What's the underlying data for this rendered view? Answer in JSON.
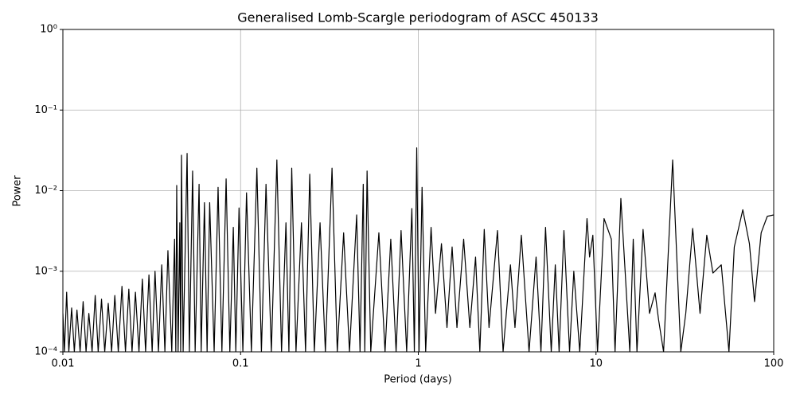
{
  "chart_data": {
    "type": "line",
    "title": "Generalised Lomb-Scargle periodogram of ASCC 450133",
    "x_label": "Period (days)",
    "y_label": "Power",
    "x_scale": "log",
    "y_scale": "log",
    "grid": true,
    "xlim": [
      0.01,
      100
    ],
    "ylim": [
      0.0001,
      1
    ],
    "xticks": [
      0.01,
      0.1,
      1,
      10,
      100
    ],
    "yticks": [
      {
        "value": 0.0001,
        "label": "10⁻⁴"
      },
      {
        "value": 0.001,
        "label": "10⁻³"
      },
      {
        "value": 0.01,
        "label": "10⁻²"
      },
      {
        "value": 0.1,
        "label": "10⁻¹"
      },
      {
        "value": 1,
        "label": "10⁰"
      }
    ],
    "x": [
      0.01,
      0.0102,
      0.0105,
      0.0108,
      0.0112,
      0.0116,
      0.012,
      0.0125,
      0.013,
      0.0135,
      0.014,
      0.0146,
      0.0152,
      0.0158,
      0.0165,
      0.0172,
      0.018,
      0.0188,
      0.0196,
      0.0205,
      0.0215,
      0.0225,
      0.0235,
      0.0245,
      0.0256,
      0.0268,
      0.028,
      0.0292,
      0.0305,
      0.0318,
      0.033,
      0.0345,
      0.036,
      0.0375,
      0.039,
      0.041,
      0.0425,
      0.0432,
      0.0437,
      0.0445,
      0.0455,
      0.046,
      0.0465,
      0.0475,
      0.05,
      0.0515,
      0.0537,
      0.0555,
      0.0584,
      0.06,
      0.0626,
      0.0648,
      0.067,
      0.071,
      0.0747,
      0.0785,
      0.0829,
      0.087,
      0.091,
      0.094,
      0.098,
      0.103,
      0.108,
      0.115,
      0.1235,
      0.131,
      0.139,
      0.149,
      0.16,
      0.17,
      0.18,
      0.187,
      0.194,
      0.205,
      0.22,
      0.232,
      0.245,
      0.26,
      0.28,
      0.3,
      0.327,
      0.35,
      0.38,
      0.41,
      0.45,
      0.47,
      0.49,
      0.5,
      0.515,
      0.54,
      0.6,
      0.65,
      0.7,
      0.75,
      0.8,
      0.86,
      0.92,
      0.95,
      0.98,
      1.01,
      1.05,
      1.1,
      1.18,
      1.25,
      1.35,
      1.45,
      1.55,
      1.65,
      1.8,
      1.95,
      2.1,
      2.22,
      2.35,
      2.5,
      2.79,
      3.0,
      3.3,
      3.5,
      3.8,
      4.2,
      4.6,
      4.9,
      5.2,
      5.6,
      5.9,
      6.2,
      6.6,
      7.1,
      7.5,
      8.1,
      8.9,
      9.2,
      9.6,
      10.2,
      11.1,
      12.2,
      12.8,
      13.8,
      15.5,
      16.2,
      17,
      18.4,
      20,
      21.5,
      22.5,
      24,
      27,
      30,
      32,
      35,
      38.5,
      42,
      45.5,
      50.7,
      56,
      60,
      67,
      73,
      78,
      85,
      92,
      100
    ],
    "series": [
      {
        "name": "Power",
        "color": "#000000",
        "values": [
          0.0003,
          0.0001,
          0.00055,
          0.0001,
          0.00035,
          0.0001,
          0.00033,
          0.0001,
          0.00042,
          0.0001,
          0.0003,
          0.0001,
          0.0005,
          0.0001,
          0.00045,
          0.0001,
          0.0004,
          0.0001,
          0.0005,
          0.0001,
          0.00065,
          0.0001,
          0.0006,
          0.0001,
          0.00055,
          0.0001,
          0.0008,
          0.0001,
          0.0009,
          0.0001,
          0.001,
          0.0001,
          0.0012,
          0.0001,
          0.0018,
          0.0001,
          0.0025,
          0.0001,
          0.0116,
          0.0001,
          0.004,
          0.0001,
          0.0275,
          0.0001,
          0.029,
          0.0001,
          0.0175,
          0.0001,
          0.012,
          0.0001,
          0.0071,
          0.0001,
          0.0071,
          0.0001,
          0.011,
          0.0001,
          0.014,
          0.0001,
          0.0035,
          0.0001,
          0.0061,
          0.0001,
          0.0094,
          0.0001,
          0.019,
          0.0001,
          0.012,
          0.0001,
          0.024,
          0.0001,
          0.004,
          0.0001,
          0.019,
          0.0001,
          0.004,
          0.0001,
          0.016,
          0.0001,
          0.004,
          0.0001,
          0.019,
          0.0001,
          0.003,
          0.0001,
          0.005,
          0.0001,
          0.012,
          0.0001,
          0.0175,
          0.0001,
          0.003,
          0.0001,
          0.0025,
          0.0001,
          0.0032,
          0.0001,
          0.006,
          0.0001,
          0.034,
          0.0001,
          0.011,
          0.0001,
          0.0035,
          0.0003,
          0.0022,
          0.0002,
          0.002,
          0.0002,
          0.0025,
          0.0002,
          0.0015,
          0.0001,
          0.0033,
          0.0002,
          0.0032,
          0.0001,
          0.0012,
          0.0002,
          0.0028,
          0.0001,
          0.0015,
          0.0001,
          0.0035,
          0.0001,
          0.0012,
          0.0001,
          0.0032,
          0.0001,
          0.001,
          0.0001,
          0.0045,
          0.0015,
          0.0028,
          0.0001,
          0.0045,
          0.0025,
          0.0001,
          0.008,
          0.0001,
          0.0025,
          0.0001,
          0.0033,
          0.0003,
          0.00054,
          0.00025,
          0.0001,
          0.024,
          0.0001,
          0.0003,
          0.0034,
          0.0003,
          0.0028,
          0.00095,
          0.0012,
          0.0001,
          0.002,
          0.0058,
          0.0022,
          0.00042,
          0.003,
          0.0048,
          0.005
        ]
      }
    ]
  }
}
